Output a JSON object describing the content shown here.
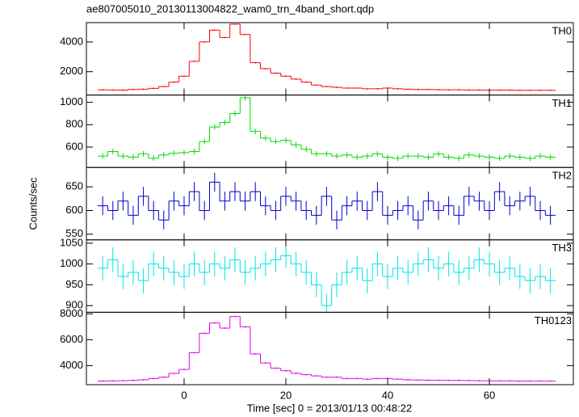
{
  "chart_data": {
    "type": "step-panels",
    "title": "ae807005010_20130113004822_wam0_trn_4band_short.qdp",
    "xlabel": "Time [sec] 0 = 2013/01/13 00:48:22",
    "ylabel": "Counts/sec",
    "x": [
      -16,
      -14,
      -12,
      -10,
      -8,
      -6,
      -4,
      -2,
      0,
      2,
      4,
      6,
      8,
      10,
      12,
      14,
      16,
      18,
      20,
      22,
      24,
      26,
      28,
      30,
      32,
      34,
      36,
      38,
      40,
      42,
      44,
      46,
      48,
      50,
      52,
      54,
      56,
      58,
      60,
      62,
      64,
      66,
      68,
      70,
      72
    ],
    "xlim": [
      -19.2,
      76.5
    ],
    "xticks": [
      0,
      20,
      40,
      60
    ],
    "panels": [
      {
        "name": "TH0",
        "color": "#ff0000",
        "error": 50,
        "ylim": [
          430,
          5300
        ],
        "yticks": [
          2000,
          4000
        ],
        "values": [
          780,
          770,
          760,
          800,
          820,
          880,
          1000,
          1300,
          1700,
          2700,
          4000,
          4800,
          4300,
          5200,
          4500,
          2600,
          2200,
          1900,
          1700,
          1500,
          1300,
          1100,
          1000,
          950,
          900,
          900,
          850,
          850,
          900,
          850,
          820,
          800,
          800,
          790,
          780,
          780,
          770,
          770,
          760,
          760,
          760,
          750,
          750,
          750,
          750
        ]
      },
      {
        "name": "TH1",
        "color": "#00dd00",
        "error": 25,
        "ylim": [
          418,
          1065
        ],
        "yticks": [
          600,
          800,
          1000
        ],
        "values": [
          520,
          560,
          520,
          510,
          540,
          500,
          530,
          545,
          550,
          560,
          650,
          780,
          820,
          900,
          1040,
          740,
          680,
          650,
          660,
          620,
          580,
          540,
          540,
          520,
          530,
          510,
          520,
          540,
          510,
          500,
          520,
          520,
          510,
          540,
          510,
          500,
          530,
          520,
          510,
          500,
          520,
          510,
          500,
          520,
          510
        ]
      },
      {
        "name": "TH2",
        "color": "#0000cc",
        "error": 20,
        "ylim": [
          538,
          691
        ],
        "yticks": [
          550,
          600,
          650
        ],
        "values": [
          610,
          600,
          620,
          590,
          630,
          600,
          580,
          620,
          610,
          640,
          600,
          660,
          620,
          640,
          620,
          640,
          610,
          600,
          630,
          620,
          600,
          590,
          630,
          580,
          610,
          620,
          600,
          640,
          590,
          600,
          610,
          580,
          620,
          600,
          610,
          590,
          630,
          620,
          600,
          640,
          610,
          620,
          630,
          600,
          590
        ]
      },
      {
        "name": "TH3",
        "color": "#00e5e5",
        "error": 30,
        "ylim": [
          884,
          1058
        ],
        "yticks": [
          900,
          950,
          1000,
          1050
        ],
        "values": [
          990,
          1010,
          970,
          980,
          960,
          1000,
          990,
          980,
          970,
          1000,
          980,
          1000,
          990,
          1010,
          980,
          990,
          1000,
          1010,
          1020,
          1000,
          980,
          950,
          900,
          950,
          980,
          990,
          960,
          1000,
          970,
          990,
          980,
          1000,
          1010,
          990,
          1000,
          980,
          990,
          1010,
          1000,
          980,
          990,
          970,
          960,
          970,
          960
        ]
      },
      {
        "name": "TH0123",
        "color": "#e600e6",
        "error": 60,
        "ylim": [
          2523,
          8123
        ],
        "yticks": [
          4000,
          6000,
          8000
        ],
        "values": [
          2800,
          2820,
          2830,
          2850,
          2900,
          3000,
          3100,
          3400,
          3700,
          5000,
          6500,
          7300,
          6900,
          7800,
          7000,
          4900,
          4200,
          3800,
          3600,
          3400,
          3300,
          3200,
          3100,
          3100,
          3000,
          3000,
          2950,
          3000,
          3000,
          2950,
          2900,
          2880,
          2870,
          2860,
          2850,
          2850,
          2840,
          2830,
          2820,
          2820,
          2820,
          2800,
          2800,
          2800,
          2800
        ]
      }
    ]
  }
}
